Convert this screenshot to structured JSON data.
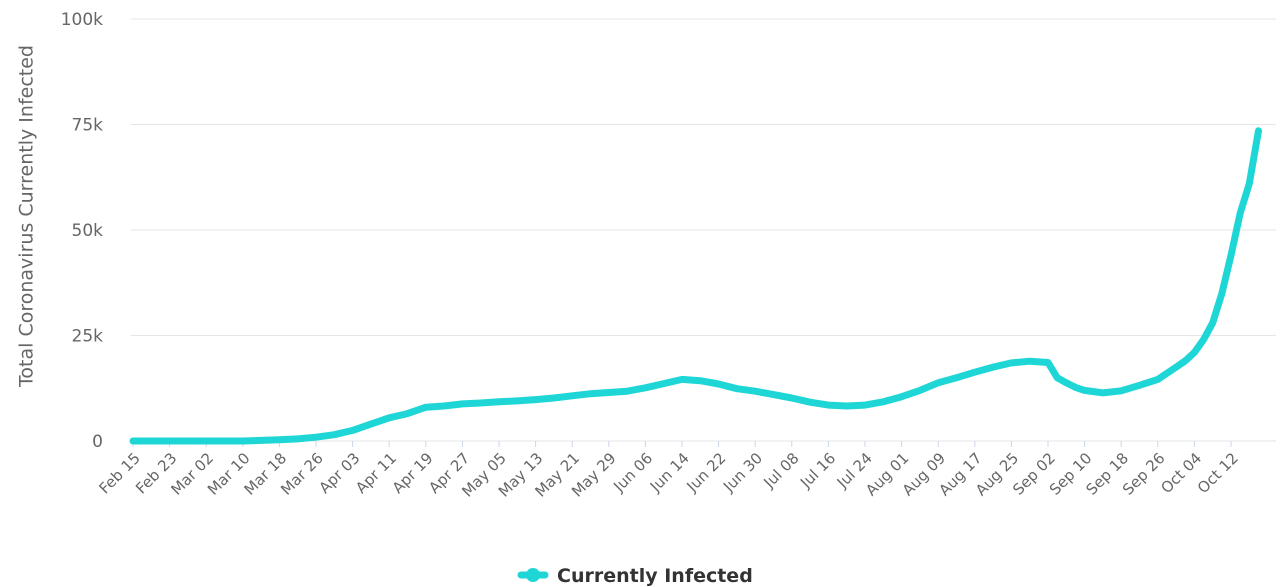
{
  "chart_data": {
    "type": "line",
    "ylabel": "Total Coronavirus Currently Infected",
    "xlabel": "",
    "ylim": [
      0,
      100000
    ],
    "y_ticks": [
      {
        "value": 0,
        "label": "0"
      },
      {
        "value": 25000,
        "label": "25k"
      },
      {
        "value": 50000,
        "label": "50k"
      },
      {
        "value": 75000,
        "label": "75k"
      },
      {
        "value": 100000,
        "label": "100k"
      }
    ],
    "x_ticks": [
      "Feb 15",
      "Feb 23",
      "Mar 02",
      "Mar 10",
      "Mar 18",
      "Mar 26",
      "Apr 03",
      "Apr 11",
      "Apr 19",
      "Apr 27",
      "May 05",
      "May 13",
      "May 21",
      "May 29",
      "Jun 06",
      "Jun 14",
      "Jun 22",
      "Jun 30",
      "Jul 08",
      "Jul 16",
      "Jul 24",
      "Aug 01",
      "Aug 09",
      "Aug 17",
      "Aug 25",
      "Sep 02",
      "Sep 10",
      "Sep 18",
      "Sep 26",
      "Oct 04",
      "Oct 12"
    ],
    "grid": true,
    "legend": "bottom-center",
    "series": [
      {
        "name": "Currently Infected",
        "color": "#1fd6d6",
        "points": [
          [
            "Feb 15",
            0
          ],
          [
            "Feb 23",
            0
          ],
          [
            "Mar 02",
            0
          ],
          [
            "Mar 10",
            0
          ],
          [
            "Mar 18",
            300
          ],
          [
            "Mar 22",
            500
          ],
          [
            "Mar 26",
            900
          ],
          [
            "Mar 30",
            1500
          ],
          [
            "Apr 03",
            2500
          ],
          [
            "Apr 07",
            4000
          ],
          [
            "Apr 11",
            5500
          ],
          [
            "Apr 15",
            6500
          ],
          [
            "Apr 19",
            8000
          ],
          [
            "Apr 23",
            8300
          ],
          [
            "Apr 27",
            8800
          ],
          [
            "May 01",
            9000
          ],
          [
            "May 05",
            9300
          ],
          [
            "May 09",
            9500
          ],
          [
            "May 13",
            9800
          ],
          [
            "May 17",
            10200
          ],
          [
            "May 21",
            10700
          ],
          [
            "May 25",
            11200
          ],
          [
            "May 29",
            11500
          ],
          [
            "Jun 02",
            11800
          ],
          [
            "Jun 06",
            12600
          ],
          [
            "Jun 10",
            13600
          ],
          [
            "Jun 14",
            14600
          ],
          [
            "Jun 18",
            14300
          ],
          [
            "Jun 22",
            13500
          ],
          [
            "Jun 26",
            12400
          ],
          [
            "Jun 30",
            11800
          ],
          [
            "Jul 04",
            11000
          ],
          [
            "Jul 08",
            10200
          ],
          [
            "Jul 12",
            9200
          ],
          [
            "Jul 16",
            8500
          ],
          [
            "Jul 20",
            8300
          ],
          [
            "Jul 24",
            8500
          ],
          [
            "Jul 28",
            9300
          ],
          [
            "Aug 01",
            10500
          ],
          [
            "Aug 05",
            12000
          ],
          [
            "Aug 09",
            13800
          ],
          [
            "Aug 13",
            15000
          ],
          [
            "Aug 17",
            16300
          ],
          [
            "Aug 21",
            17500
          ],
          [
            "Aug 25",
            18500
          ],
          [
            "Aug 29",
            18900
          ],
          [
            "Sep 02",
            18600
          ],
          [
            "Sep 04",
            15000
          ],
          [
            "Sep 06",
            13800
          ],
          [
            "Sep 08",
            12700
          ],
          [
            "Sep 10",
            12000
          ],
          [
            "Sep 14",
            11400
          ],
          [
            "Sep 18",
            11900
          ],
          [
            "Sep 22",
            13200
          ],
          [
            "Sep 26",
            14600
          ],
          [
            "Sep 30",
            17500
          ],
          [
            "Oct 02",
            19000
          ],
          [
            "Oct 04",
            21000
          ],
          [
            "Oct 06",
            24000
          ],
          [
            "Oct 08",
            28000
          ],
          [
            "Oct 10",
            35000
          ],
          [
            "Oct 12",
            44000
          ],
          [
            "Oct 14",
            54000
          ],
          [
            "Oct 16",
            61000
          ],
          [
            "Oct 18",
            73500
          ]
        ]
      }
    ]
  }
}
